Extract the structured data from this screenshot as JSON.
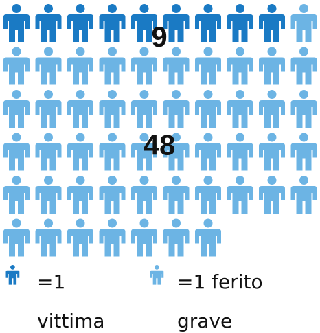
{
  "chart_data": {
    "type": "pictogram",
    "per_row": 10,
    "series": [
      {
        "name": "=1 vittima",
        "color": "#1a7ac4",
        "values": [
          9
        ]
      },
      {
        "name": "=1 ferito grave",
        "color": "#6cb4e4",
        "values": [
          48
        ]
      }
    ]
  }
}
